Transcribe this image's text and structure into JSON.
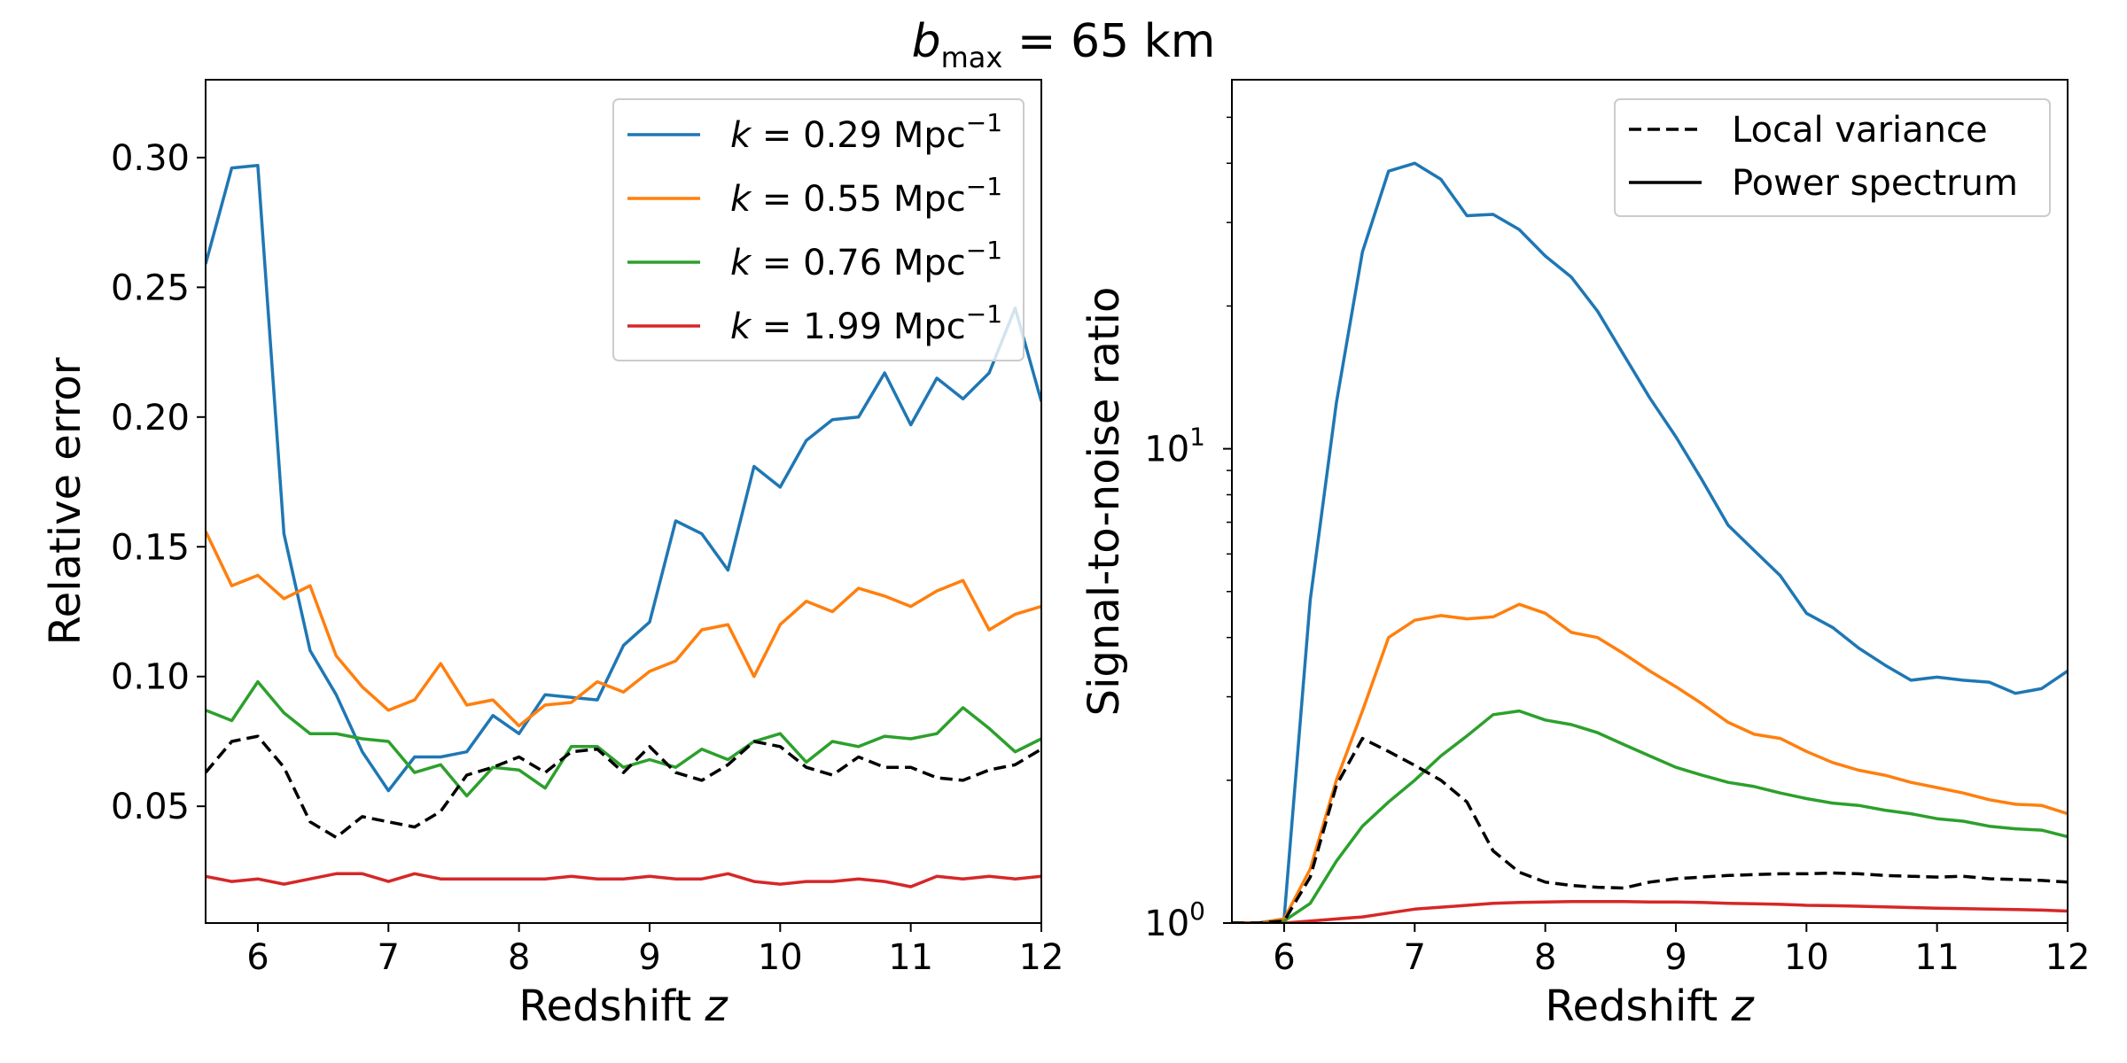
{
  "figure": {
    "title_symbol": "b",
    "title_subscript": "max",
    "title_rest": " = 65 km"
  },
  "chart_data": [
    {
      "type": "line",
      "ylabel": "Relative error",
      "xlabel_text": "Redshift ",
      "xlabel_var": "z",
      "xlim": [
        5.6,
        12
      ],
      "ylim": [
        0.005,
        0.33
      ],
      "xticks": [
        6,
        7,
        8,
        9,
        10,
        11,
        12
      ],
      "yticks": [
        0.05,
        0.1,
        0.15,
        0.2,
        0.25,
        0.3
      ],
      "ytick_labels": [
        "0.05",
        "0.10",
        "0.15",
        "0.20",
        "0.25",
        "0.30"
      ],
      "x": [
        5.6,
        5.8,
        6.0,
        6.2,
        6.4,
        6.6,
        6.8,
        7.0,
        7.2,
        7.4,
        7.6,
        7.8,
        8.0,
        8.2,
        8.4,
        8.6,
        8.8,
        9.0,
        9.2,
        9.4,
        9.6,
        9.8,
        10.0,
        10.2,
        10.4,
        10.6,
        10.8,
        11.0,
        11.2,
        11.4,
        11.6,
        11.8,
        12.0
      ],
      "legend_position": "upper right",
      "series": [
        {
          "k_value": "0.29",
          "color": "#1f77b4",
          "style": "solid",
          "values": [
            0.259,
            0.296,
            0.297,
            0.155,
            0.11,
            0.093,
            0.071,
            0.056,
            0.069,
            0.069,
            0.071,
            0.085,
            0.078,
            0.093,
            0.092,
            0.091,
            0.112,
            0.121,
            0.16,
            0.155,
            0.141,
            0.181,
            0.173,
            0.191,
            0.199,
            0.2,
            0.217,
            0.197,
            0.215,
            0.207,
            0.217,
            0.242,
            0.206
          ]
        },
        {
          "k_value": "0.55",
          "color": "#ff7f0e",
          "style": "solid",
          "values": [
            0.156,
            0.135,
            0.139,
            0.13,
            0.135,
            0.108,
            0.096,
            0.087,
            0.091,
            0.105,
            0.089,
            0.091,
            0.081,
            0.089,
            0.09,
            0.098,
            0.094,
            0.102,
            0.106,
            0.118,
            0.12,
            0.1,
            0.12,
            0.129,
            0.125,
            0.134,
            0.131,
            0.127,
            0.133,
            0.137,
            0.118,
            0.124,
            0.127
          ]
        },
        {
          "k_value": "0.76",
          "color": "#2ca02c",
          "style": "solid",
          "values": [
            0.087,
            0.083,
            0.098,
            0.086,
            0.078,
            0.078,
            0.076,
            0.075,
            0.063,
            0.066,
            0.054,
            0.065,
            0.064,
            0.057,
            0.073,
            0.073,
            0.065,
            0.068,
            0.065,
            0.072,
            0.068,
            0.075,
            0.078,
            0.067,
            0.075,
            0.073,
            0.077,
            0.076,
            0.078,
            0.088,
            0.08,
            0.071,
            0.076
          ]
        },
        {
          "k_value": "1.99",
          "color": "#d62728",
          "style": "solid",
          "values": [
            0.023,
            0.021,
            0.022,
            0.02,
            0.022,
            0.024,
            0.024,
            0.021,
            0.024,
            0.022,
            0.022,
            0.022,
            0.022,
            0.022,
            0.023,
            0.022,
            0.022,
            0.023,
            0.022,
            0.022,
            0.024,
            0.021,
            0.02,
            0.021,
            0.021,
            0.022,
            0.021,
            0.019,
            0.023,
            0.022,
            0.023,
            0.022,
            0.023
          ]
        },
        {
          "k_value": "",
          "color": "#000000",
          "style": "dashed",
          "in_legend": false,
          "values": [
            0.063,
            0.075,
            0.077,
            0.065,
            0.044,
            0.038,
            0.046,
            0.044,
            0.042,
            0.048,
            0.062,
            0.065,
            0.069,
            0.063,
            0.071,
            0.072,
            0.063,
            0.073,
            0.063,
            0.06,
            0.066,
            0.075,
            0.073,
            0.065,
            0.062,
            0.069,
            0.065,
            0.065,
            0.061,
            0.06,
            0.064,
            0.066,
            0.072
          ]
        }
      ],
      "legend_prefix": "k",
      "legend_unit": "Mpc",
      "legend_unit_exp": "−1"
    },
    {
      "type": "line",
      "yscale": "log",
      "ylabel": "Signal-to-noise ratio",
      "xlabel_text": "Redshift ",
      "xlabel_var": "z",
      "xlim": [
        5.6,
        12
      ],
      "ylim": [
        1.0,
        60
      ],
      "xticks": [
        6,
        7,
        8,
        9,
        10,
        11,
        12
      ],
      "ytick_base": "10",
      "ytick_exponents": [
        "0",
        "1"
      ],
      "ytick_values": [
        1,
        10
      ],
      "x": [
        5.6,
        5.8,
        6.0,
        6.2,
        6.4,
        6.6,
        6.8,
        7.0,
        7.2,
        7.4,
        7.6,
        7.8,
        8.0,
        8.2,
        8.4,
        8.6,
        8.8,
        9.0,
        9.2,
        9.4,
        9.6,
        9.8,
        10.0,
        10.2,
        10.4,
        10.6,
        10.8,
        11.0,
        11.2,
        11.4,
        11.6,
        11.8,
        12.0
      ],
      "legend_position": "upper right",
      "legend": [
        {
          "label": "Local variance",
          "style": "dashed",
          "color": "#000000"
        },
        {
          "label": "Power spectrum",
          "style": "solid",
          "color": "#000000"
        }
      ],
      "series": [
        {
          "color": "#1f77b4",
          "style": "solid",
          "values": [
            1.0,
            1.0,
            1.02,
            4.8,
            12.5,
            26.0,
            38.5,
            40.0,
            37.0,
            31.0,
            31.2,
            29.0,
            25.5,
            23.0,
            19.5,
            15.8,
            12.8,
            10.6,
            8.6,
            6.9,
            6.1,
            5.4,
            4.5,
            4.2,
            3.8,
            3.5,
            3.25,
            3.3,
            3.25,
            3.22,
            3.05,
            3.12,
            3.4
          ]
        },
        {
          "color": "#ff7f0e",
          "style": "solid",
          "values": [
            1.0,
            1.0,
            1.02,
            1.3,
            2.0,
            2.8,
            4.0,
            4.35,
            4.45,
            4.38,
            4.42,
            4.7,
            4.5,
            4.1,
            4.0,
            3.7,
            3.4,
            3.15,
            2.9,
            2.65,
            2.5,
            2.45,
            2.3,
            2.18,
            2.1,
            2.05,
            1.98,
            1.93,
            1.88,
            1.82,
            1.78,
            1.77,
            1.7
          ]
        },
        {
          "color": "#2ca02c",
          "style": "solid",
          "values": [
            1.0,
            1.0,
            1.01,
            1.1,
            1.35,
            1.6,
            1.8,
            2.0,
            2.25,
            2.48,
            2.75,
            2.8,
            2.68,
            2.62,
            2.52,
            2.38,
            2.25,
            2.13,
            2.05,
            1.98,
            1.94,
            1.88,
            1.83,
            1.79,
            1.77,
            1.73,
            1.7,
            1.66,
            1.64,
            1.6,
            1.58,
            1.57,
            1.52
          ]
        },
        {
          "color": "#d62728",
          "style": "solid",
          "values": [
            1.0,
            1.0,
            1.0,
            1.01,
            1.02,
            1.03,
            1.05,
            1.07,
            1.08,
            1.09,
            1.1,
            1.105,
            1.108,
            1.11,
            1.11,
            1.11,
            1.108,
            1.108,
            1.105,
            1.1,
            1.098,
            1.095,
            1.09,
            1.088,
            1.085,
            1.082,
            1.078,
            1.075,
            1.072,
            1.07,
            1.068,
            1.065,
            1.06
          ]
        },
        {
          "color": "#000000",
          "style": "dashed",
          "values": [
            1.0,
            1.0,
            1.01,
            1.25,
            1.95,
            2.45,
            2.3,
            2.15,
            2.0,
            1.8,
            1.42,
            1.28,
            1.22,
            1.2,
            1.19,
            1.185,
            1.22,
            1.24,
            1.25,
            1.26,
            1.265,
            1.27,
            1.27,
            1.275,
            1.27,
            1.26,
            1.255,
            1.25,
            1.255,
            1.24,
            1.235,
            1.23,
            1.22
          ]
        }
      ]
    }
  ]
}
